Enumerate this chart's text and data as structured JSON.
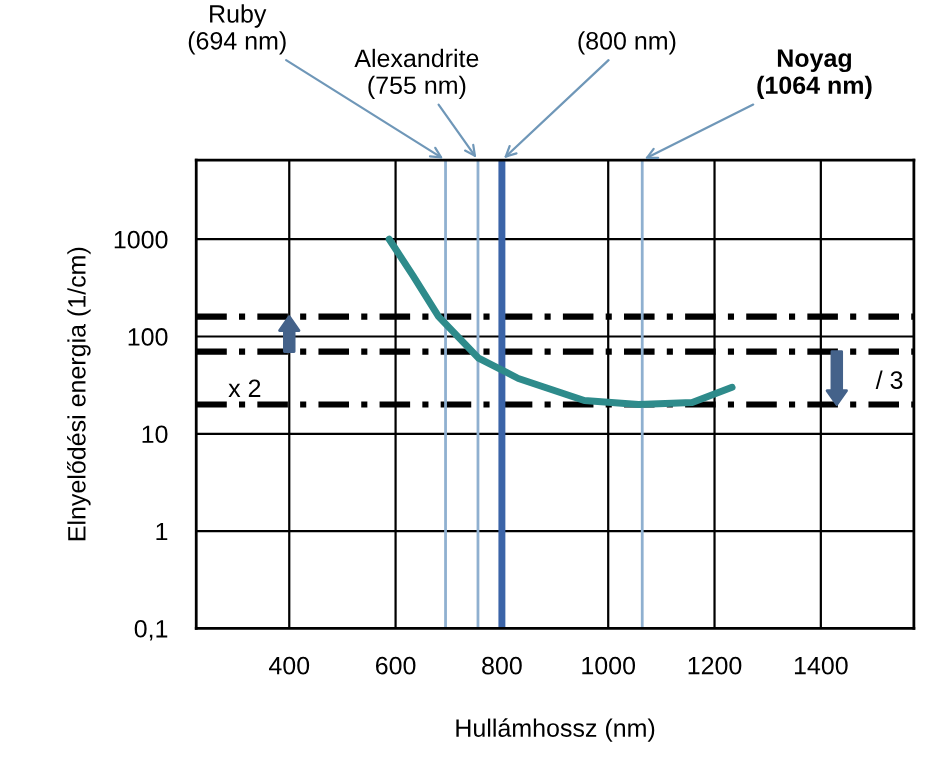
{
  "chart_data": {
    "type": "line",
    "xlabel": "Hullámhossz (nm)",
    "ylabel": "Elnyelődési energia (1/cm)",
    "series": [
      {
        "color": "#2e8b8b",
        "x": [
          588,
          633,
          681,
          756,
          831,
          955,
          1057,
          1158,
          1233
        ],
        "values": [
          1000,
          420,
          160,
          60,
          37,
          22,
          20,
          21,
          30
        ]
      }
    ],
    "log": true,
    "xlim": [
      225,
      1575
    ],
    "xticks": [
      400,
      600,
      800,
      1000,
      1200,
      1400
    ],
    "ylim": [
      0.1,
      6500
    ],
    "yticks": [
      {
        "value": 0.1,
        "label": "0,1"
      },
      1,
      10,
      100,
      1000
    ],
    "grid": true,
    "marker": "none",
    "line_style": "solid",
    "ref_lines": [
      {
        "axis": "y",
        "value": 160,
        "color": "#000000",
        "line_style": "dashdot"
      },
      {
        "axis": "y",
        "value": 70,
        "color": "#000000",
        "line_style": "dashdot"
      },
      {
        "axis": "y",
        "value": 20,
        "color": "#000000",
        "line_style": "dashdot"
      },
      {
        "axis": "x",
        "value": 694,
        "label": "Ruby\n(694 nm)",
        "color": "#8fb0d0",
        "line_style": "solid"
      },
      {
        "axis": "x",
        "value": 755,
        "label": "Alexandrite\n(755 nm)",
        "color": "#8fb0d0",
        "line_style": "solid"
      },
      {
        "axis": "x",
        "value": 800,
        "label": "(800 nm)",
        "color": "#3b64a8",
        "line_style": "solid"
      },
      {
        "axis": "x",
        "value": 1064,
        "label": "Noyag\n(1064 nm)",
        "color": "#8fb0d0",
        "line_style": "solid"
      }
    ],
    "annotations": [
      {
        "text": "x 2",
        "x": 400,
        "y": 160
      },
      {
        "text": "/ 3",
        "x": 1430,
        "y": 20
      }
    ]
  }
}
